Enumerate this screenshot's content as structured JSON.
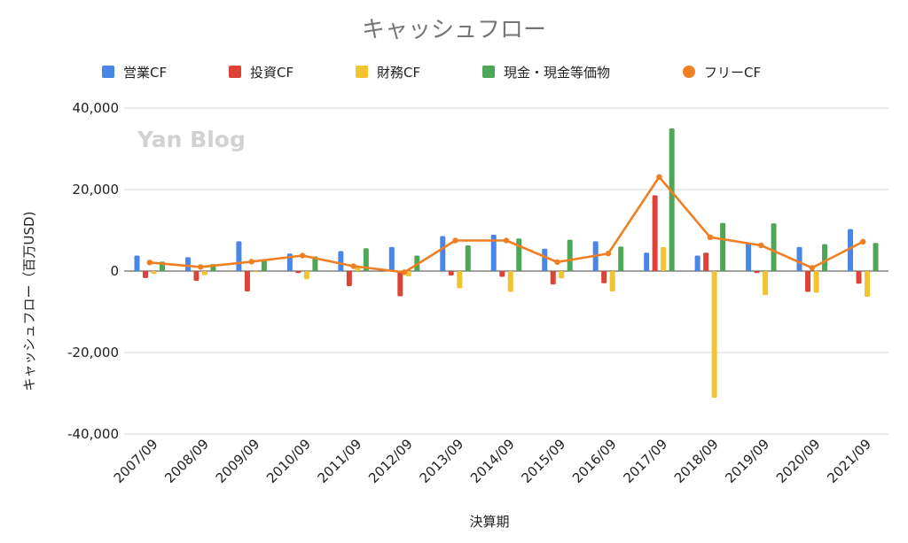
{
  "chart_data": {
    "type": "bar",
    "title": "キャッシュフロー",
    "xlabel": "決算期",
    "ylabel": "キャッシュフロー（百万USD)",
    "ylim": [
      -40000,
      40000
    ],
    "yticks": [
      40000,
      20000,
      0,
      -20000,
      -40000
    ],
    "ytick_labels": [
      "40,000",
      "20,000",
      "0",
      "-20,000",
      "-40,000"
    ],
    "grid": true,
    "legend_position": "top",
    "watermark": "Yan Blog",
    "categories": [
      "2007/09",
      "2008/09",
      "2009/09",
      "2010/09",
      "2011/09",
      "2012/09",
      "2013/09",
      "2014/09",
      "2015/09",
      "2016/09",
      "2017/09",
      "2018/09",
      "2019/09",
      "2020/09",
      "2021/09"
    ],
    "series": [
      {
        "name": "営業CF",
        "type": "bar",
        "color": "#4a86e8",
        "values": [
          3800,
          3400,
          7300,
          4300,
          4900,
          5900,
          8600,
          8900,
          5500,
          7300,
          4500,
          3800,
          6800,
          5900,
          10300
        ]
      },
      {
        "name": "投資CF",
        "type": "bar",
        "color": "#db4437",
        "values": [
          -1700,
          -2400,
          -5000,
          -500,
          -3700,
          -6200,
          -1100,
          -1400,
          -3300,
          -3000,
          18600,
          4500,
          -500,
          -5100,
          -3100
        ]
      },
      {
        "name": "財務CF",
        "type": "bar",
        "color": "#f4c430",
        "values": [
          -700,
          -1000,
          -300,
          -2000,
          1300,
          -1300,
          -4200,
          -5100,
          -1800,
          -5000,
          5900,
          -31100,
          -5900,
          -5300,
          -6300
        ]
      },
      {
        "name": "現金・現金等価物",
        "type": "bar",
        "color": "#4fa657",
        "values": [
          2300,
          1700,
          2900,
          3600,
          5600,
          3800,
          6300,
          8000,
          7700,
          6000,
          35000,
          11800,
          11700,
          6600,
          6900
        ]
      },
      {
        "name": "フリーCF",
        "type": "line",
        "color": "#ef7f22",
        "values": [
          2100,
          1000,
          2300,
          3800,
          1200,
          -300,
          7500,
          7500,
          2200,
          4300,
          23100,
          8300,
          6300,
          800,
          7200
        ]
      }
    ]
  }
}
